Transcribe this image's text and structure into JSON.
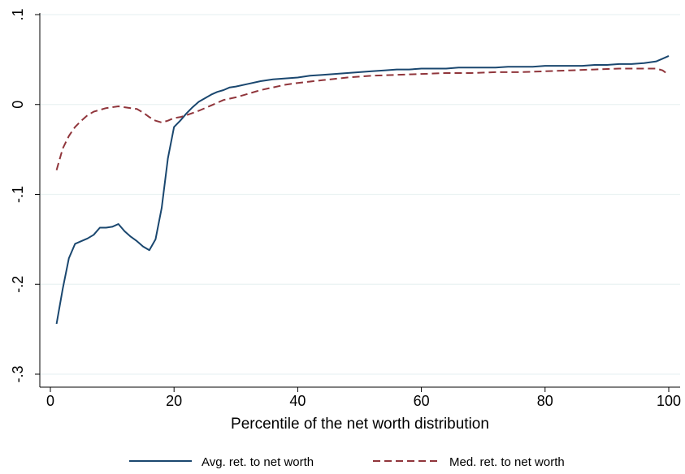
{
  "chart_data": {
    "type": "line",
    "title": "",
    "xlabel": "Percentile of the net worth distribution",
    "ylabel": "",
    "xlim": [
      0,
      100
    ],
    "ylim": [
      -0.3,
      0.1
    ],
    "xticks": [
      0,
      20,
      40,
      60,
      80,
      100
    ],
    "yticks": [
      -0.3,
      -0.2,
      -0.1,
      0,
      0.1
    ],
    "xtick_labels": [
      "0",
      "20",
      "40",
      "60",
      "80",
      "100"
    ],
    "ytick_labels": [
      "-.3",
      "-.2",
      "-.1",
      "0",
      ".1"
    ],
    "grid": "horizontal",
    "legend_position": "bottom",
    "series": [
      {
        "name": "Avg. ret. to net worth",
        "color": "#1a476f",
        "dash": "solid",
        "x": [
          1,
          2,
          3,
          4,
          5,
          6,
          7,
          8,
          9,
          10,
          11,
          12,
          13,
          14,
          15,
          16,
          17,
          18,
          19,
          20,
          21,
          22,
          23,
          24,
          25,
          26,
          27,
          28,
          29,
          30,
          32,
          34,
          36,
          38,
          40,
          42,
          44,
          46,
          48,
          50,
          52,
          54,
          56,
          58,
          60,
          62,
          64,
          66,
          68,
          70,
          72,
          74,
          76,
          78,
          80,
          82,
          84,
          86,
          88,
          90,
          92,
          94,
          96,
          98,
          99,
          100
        ],
        "y": [
          -0.244,
          -0.205,
          -0.171,
          -0.155,
          -0.152,
          -0.149,
          -0.145,
          -0.137,
          -0.137,
          -0.136,
          -0.133,
          -0.141,
          -0.147,
          -0.152,
          -0.158,
          -0.162,
          -0.15,
          -0.115,
          -0.06,
          -0.025,
          -0.018,
          -0.01,
          -0.003,
          0.003,
          0.007,
          0.011,
          0.014,
          0.016,
          0.019,
          0.02,
          0.023,
          0.026,
          0.028,
          0.029,
          0.03,
          0.032,
          0.033,
          0.034,
          0.035,
          0.036,
          0.037,
          0.038,
          0.039,
          0.039,
          0.04,
          0.04,
          0.04,
          0.041,
          0.041,
          0.041,
          0.041,
          0.042,
          0.042,
          0.042,
          0.043,
          0.043,
          0.043,
          0.043,
          0.044,
          0.044,
          0.045,
          0.045,
          0.046,
          0.048,
          0.051,
          0.054
        ]
      },
      {
        "name": "Med. ret. to net worth",
        "color": "#90353b",
        "dash": "dashed",
        "x": [
          1,
          2,
          3,
          4,
          5,
          6,
          7,
          8,
          9,
          10,
          11,
          12,
          13,
          14,
          15,
          16,
          17,
          18,
          19,
          20,
          21,
          22,
          24,
          26,
          28,
          30,
          32,
          34,
          36,
          38,
          40,
          44,
          48,
          52,
          56,
          60,
          64,
          68,
          72,
          76,
          80,
          84,
          88,
          92,
          96,
          98,
          99,
          100
        ],
        "y": [
          -0.073,
          -0.049,
          -0.035,
          -0.025,
          -0.018,
          -0.012,
          -0.008,
          -0.006,
          -0.004,
          -0.003,
          -0.002,
          -0.003,
          -0.004,
          -0.005,
          -0.009,
          -0.014,
          -0.018,
          -0.02,
          -0.018,
          -0.015,
          -0.014,
          -0.012,
          -0.007,
          -0.001,
          0.005,
          0.008,
          0.012,
          0.016,
          0.019,
          0.022,
          0.024,
          0.027,
          0.03,
          0.032,
          0.033,
          0.034,
          0.035,
          0.035,
          0.036,
          0.036,
          0.037,
          0.038,
          0.039,
          0.04,
          0.04,
          0.04,
          0.038,
          0.033
        ]
      }
    ]
  }
}
